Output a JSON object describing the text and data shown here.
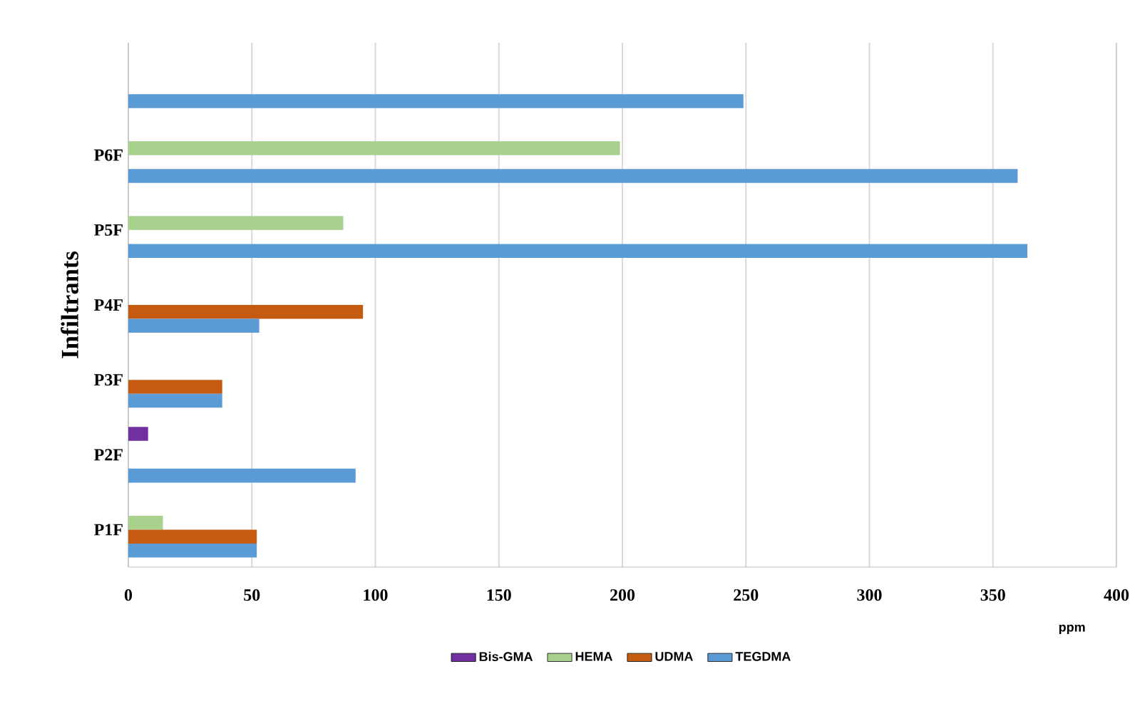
{
  "chart_data": {
    "type": "bar",
    "orientation": "horizontal",
    "ylabel": "Infiltrants",
    "xlabel": "ppm",
    "categories": [
      null,
      "P6F",
      "P5F",
      "P4F",
      "P3F",
      "P2F",
      "P1F"
    ],
    "series": [
      {
        "name": "Bis-GMA",
        "color": "#7030a0",
        "values": [
          null,
          null,
          null,
          null,
          null,
          8,
          null
        ]
      },
      {
        "name": "HEMA",
        "color": "#a9d18e",
        "values": [
          null,
          199,
          87,
          null,
          null,
          null,
          14
        ]
      },
      {
        "name": "UDMA",
        "color": "#c55a11",
        "values": [
          null,
          null,
          null,
          95,
          38,
          null,
          52
        ]
      },
      {
        "name": "TEGDMA",
        "color": "#5b9bd5",
        "values": [
          249,
          360,
          364,
          53,
          38,
          92,
          52
        ]
      }
    ],
    "xlim": [
      0,
      400
    ],
    "xticks": [
      0,
      50,
      100,
      150,
      200,
      250,
      300,
      350,
      400
    ],
    "grid": "x",
    "legend": "bottom"
  }
}
